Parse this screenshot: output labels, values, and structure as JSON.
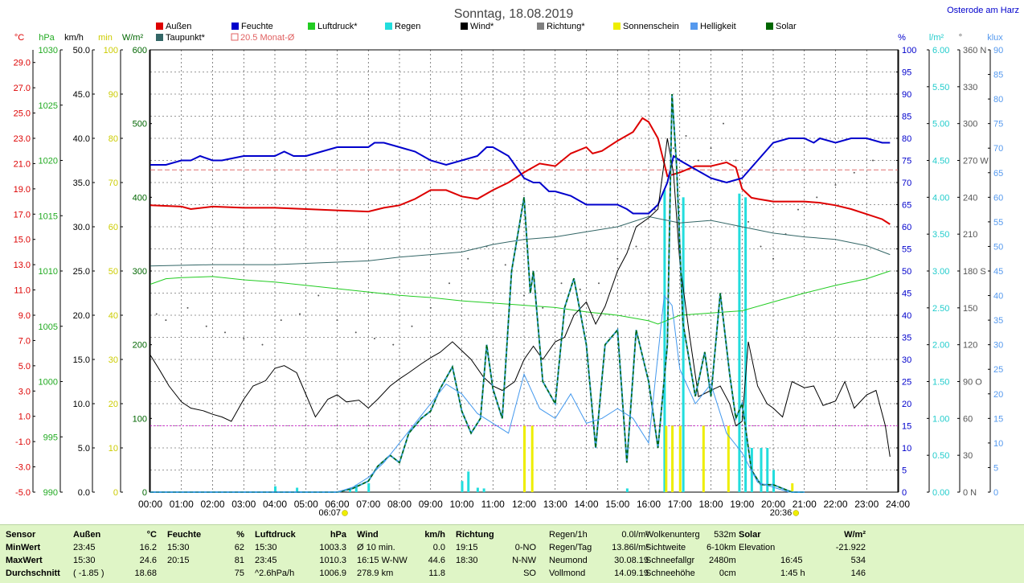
{
  "header": {
    "title": "Sonntag, 18.08.2019",
    "location": "Osterode am Harz"
  },
  "legend": [
    {
      "label": "Außen",
      "color": "#dd0000"
    },
    {
      "label": "Feuchte",
      "color": "#0000cc"
    },
    {
      "label": "Luftdruck*",
      "color": "#22cc22"
    },
    {
      "label": "Regen",
      "color": "#22dddd"
    },
    {
      "label": "Wind*",
      "color": "#000000"
    },
    {
      "label": "Richtung*",
      "color": "#808080"
    },
    {
      "label": "Sonnenschein",
      "color": "#eeee00"
    },
    {
      "label": "Helligkeit",
      "color": "#5599ee"
    },
    {
      "label": "Solar",
      "color": "#006600"
    },
    {
      "label": "Taupunkt*",
      "color": "#336666"
    },
    {
      "label": "20.5 Monat-Ø",
      "color": "#e06060"
    }
  ],
  "axes_units": {
    "temp": "°C",
    "hpa": "hPa",
    "kmh": "km/h",
    "min": "min",
    "wm2": "W/m²",
    "pct": "%",
    "lm2": "l/m²",
    "deg": "°",
    "klux": "klux"
  },
  "chart_data": {
    "type": "line",
    "x_labels": [
      "00:00",
      "01:00",
      "02:00",
      "03:00",
      "04:00",
      "05:00",
      "06:00",
      "07:00",
      "08:00",
      "09:00",
      "10:00",
      "11:00",
      "12:00",
      "13:00",
      "14:00",
      "15:00",
      "16:00",
      "17:00",
      "18:00",
      "19:00",
      "20:00",
      "21:00",
      "22:00",
      "23:00",
      "24:00"
    ],
    "sunrise": "06:07",
    "sunset": "20:36",
    "month_avg_temp": 20.5,
    "axes": {
      "temp": {
        "ticks": [
          "29.0",
          "27.0",
          "25.0",
          "23.0",
          "21.0",
          "19.0",
          "17.0",
          "15.0",
          "13.0",
          "11.0",
          "9.0",
          "7.0",
          "5.0",
          "3.0",
          "1.0",
          "-1.0",
          "-3.0",
          "-5.0"
        ],
        "range": [
          -5,
          30
        ]
      },
      "hpa": {
        "ticks": [
          "1030",
          "1025",
          "1020",
          "1015",
          "1010",
          "1005",
          "1000",
          "995",
          "990"
        ],
        "range": [
          990,
          1030
        ]
      },
      "kmh": {
        "ticks": [
          "50.0",
          "45.0",
          "40.0",
          "35.0",
          "30.0",
          "25.0",
          "20.0",
          "15.0",
          "10.0",
          "5.0",
          "0.0"
        ],
        "range": [
          0,
          50
        ]
      },
      "min": {
        "ticks": [
          "100",
          "90",
          "80",
          "70",
          "60",
          "50",
          "40",
          "30",
          "20",
          "10",
          "0"
        ],
        "range": [
          0,
          100
        ]
      },
      "wm2": {
        "ticks": [
          "600",
          "500",
          "400",
          "300",
          "200",
          "100",
          "0"
        ],
        "range": [
          0,
          600
        ]
      },
      "pct": {
        "ticks": [
          "100",
          "95",
          "90",
          "85",
          "80",
          "75",
          "70",
          "65",
          "60",
          "55",
          "50",
          "45",
          "40",
          "35",
          "30",
          "25",
          "20",
          "15",
          "10",
          "5",
          "0"
        ],
        "range": [
          0,
          100
        ]
      },
      "lm2": {
        "ticks": [
          "6.00",
          "5.50",
          "5.00",
          "4.50",
          "4.00",
          "3.50",
          "3.00",
          "2.50",
          "2.00",
          "1.50",
          "1.00",
          "0.50",
          "0.00"
        ],
        "range": [
          0,
          6
        ]
      },
      "deg": {
        "ticks": [
          "360 N",
          "330",
          "300",
          "270 W",
          "240",
          "210",
          "180 S",
          "150",
          "120",
          "90 O",
          "60",
          "30",
          "0 N"
        ],
        "range": [
          0,
          360
        ]
      },
      "klux": {
        "ticks": [
          "90",
          "85",
          "80",
          "75",
          "70",
          "65",
          "60",
          "55",
          "50",
          "45",
          "40",
          "35",
          "30",
          "25",
          "20",
          "15",
          "10",
          "5",
          "0"
        ],
        "range": [
          0,
          90
        ]
      }
    },
    "series": [
      {
        "name": "Außen",
        "axis": "temp",
        "color": "#dd0000",
        "width": 2,
        "x": [
          0,
          1,
          1.3,
          2,
          3,
          4,
          5,
          6,
          7,
          7.5,
          8,
          8.5,
          9,
          9.5,
          10,
          10.5,
          11,
          11.5,
          12,
          12.5,
          13,
          13.5,
          14,
          14.2,
          14.5,
          15,
          15.5,
          15.8,
          16,
          16.3,
          16.6,
          17,
          17.5,
          18,
          18.5,
          18.8,
          19,
          19.3,
          19.5,
          20,
          20.5,
          21,
          21.5,
          22,
          22.5,
          23,
          23.5,
          23.75
        ],
        "y": [
          17.7,
          17.6,
          17.4,
          17.6,
          17.5,
          17.5,
          17.4,
          17.3,
          17.2,
          17.5,
          17.7,
          18.2,
          18.9,
          18.9,
          18.4,
          18.2,
          18.9,
          19.5,
          20.3,
          21.0,
          20.8,
          21.8,
          22.3,
          21.8,
          22.0,
          22.8,
          23.5,
          24.6,
          24.3,
          23.0,
          20.0,
          20.3,
          20.8,
          20.8,
          21.1,
          20.7,
          19.0,
          18.3,
          18.2,
          18.0,
          18.0,
          18.0,
          17.9,
          17.7,
          17.4,
          17.0,
          16.6,
          16.2
        ]
      },
      {
        "name": "Feuchte",
        "axis": "pct",
        "color": "#0000cc",
        "width": 2,
        "x": [
          0,
          0.5,
          1,
          1.3,
          1.6,
          2,
          2.3,
          3,
          4,
          4.3,
          4.6,
          5,
          5.5,
          6,
          7,
          7.2,
          7.5,
          8,
          8.5,
          9,
          9.5,
          10,
          10.5,
          10.8,
          11,
          11.5,
          12,
          12.3,
          12.5,
          12.8,
          13,
          13.5,
          14,
          15,
          15.3,
          15.5,
          16,
          16.3,
          16.6,
          16.8,
          17,
          17.5,
          18,
          18.5,
          19,
          19.5,
          20,
          20.5,
          21,
          21.3,
          21.5,
          22,
          22.5,
          23,
          23.5,
          23.75
        ],
        "y": [
          74,
          74,
          75,
          75,
          76,
          75,
          75,
          76,
          76,
          77,
          76,
          76,
          77,
          78,
          78,
          79,
          79,
          78,
          77,
          75,
          74,
          75,
          76,
          78,
          78,
          76,
          71,
          70,
          70,
          68,
          68,
          67,
          65,
          65,
          64,
          63,
          63,
          65,
          70,
          76,
          75,
          73,
          71,
          70,
          71,
          75,
          79,
          80,
          80,
          79,
          80,
          79,
          80,
          80,
          79,
          79
        ]
      },
      {
        "name": "Luftdruck",
        "axis": "hpa",
        "color": "#22cc22",
        "width": 1,
        "x": [
          0,
          0.5,
          1,
          2,
          3,
          4,
          5,
          6,
          7,
          8,
          9,
          10,
          11,
          12,
          13,
          14,
          15,
          16,
          16.3,
          17,
          18,
          19,
          20,
          21,
          22,
          23,
          23.75
        ],
        "y": [
          1008.8,
          1009.3,
          1009.4,
          1009.5,
          1009.2,
          1009.0,
          1008.7,
          1008.4,
          1008.1,
          1007.8,
          1007.6,
          1007.3,
          1007.1,
          1006.9,
          1006.7,
          1006.3,
          1006.0,
          1005.5,
          1005.2,
          1006.0,
          1006.2,
          1006.4,
          1007.2,
          1008.0,
          1008.7,
          1009.3,
          1010.0
        ]
      },
      {
        "name": "Taupunkt",
        "axis": "temp",
        "color": "#336666",
        "width": 1,
        "x": [
          0,
          2,
          4,
          6,
          7,
          8,
          9,
          10,
          11,
          12,
          13,
          14,
          15,
          16,
          17,
          18,
          19,
          20,
          21,
          22,
          23,
          23.75
        ],
        "y": [
          12.9,
          13.0,
          13.0,
          13.2,
          13.3,
          13.6,
          13.8,
          14.0,
          14.6,
          15.0,
          15.2,
          15.6,
          16.0,
          16.8,
          16.3,
          16.5,
          16.0,
          15.5,
          15.2,
          15.0,
          14.5,
          13.8
        ]
      },
      {
        "name": "Wind",
        "axis": "kmh",
        "color": "#000000",
        "width": 1,
        "x": [
          0,
          0.3,
          0.6,
          1,
          1.3,
          1.7,
          2,
          2.3,
          2.6,
          3,
          3.3,
          3.7,
          4,
          4.3,
          4.7,
          5,
          5.3,
          5.7,
          6,
          6.3,
          6.7,
          7,
          7.3,
          7.7,
          8,
          8.3,
          8.7,
          9,
          9.3,
          9.7,
          10,
          10.3,
          10.7,
          11,
          11.3,
          11.7,
          12,
          12.3,
          12.6,
          13,
          13.3,
          13.6,
          14,
          14.3,
          14.6,
          15,
          15.3,
          15.6,
          16,
          16.3,
          16.6,
          16.8,
          17,
          17.3,
          17.6,
          18,
          18.3,
          18.6,
          18.8,
          19,
          19.2,
          19.5,
          19.8,
          20,
          20.3,
          20.6,
          21,
          21.3,
          21.6,
          22,
          22.3,
          22.6,
          23,
          23.3,
          23.6,
          23.75
        ],
        "y": [
          15.5,
          13.8,
          12.0,
          10.2,
          9.5,
          9.2,
          8.8,
          8.5,
          8.0,
          10.5,
          12.0,
          12.6,
          14.0,
          14.3,
          13.5,
          11.0,
          8.5,
          10.5,
          11.0,
          10.2,
          10.4,
          9.5,
          10.5,
          12.0,
          12.8,
          13.5,
          14.5,
          15.2,
          15.8,
          17.0,
          16.0,
          15.0,
          13.0,
          12.0,
          11.5,
          12.5,
          15.0,
          16.5,
          15.0,
          17.0,
          17.5,
          20.0,
          21.5,
          19.0,
          21.0,
          25.0,
          27.0,
          30.0,
          31.0,
          32.0,
          40.0,
          36.0,
          26.0,
          18.0,
          10.8,
          11.5,
          12.0,
          10.0,
          7.5,
          8.0,
          17.0,
          12.0,
          10.0,
          9.5,
          8.5,
          12.5,
          11.8,
          12.0,
          9.8,
          10.3,
          12.5,
          9.5,
          11.0,
          11.5,
          7.5,
          4.0
        ]
      },
      {
        "name": "Solar",
        "axis": "wm2",
        "color": "#006600",
        "width": 2,
        "dash": "4 3",
        "x": [
          0,
          6,
          6.2,
          6.5,
          7,
          7.3,
          7.7,
          8,
          8.3,
          8.7,
          9,
          9.3,
          9.7,
          10,
          10.3,
          10.6,
          10.8,
          11,
          11.3,
          11.6,
          12,
          12.2,
          12.3,
          12.6,
          13,
          13.3,
          13.6,
          14,
          14.3,
          14.6,
          15,
          15.3,
          15.6,
          16,
          16.3,
          16.6,
          16.75,
          16.9,
          17.1,
          17.5,
          17.8,
          18,
          18.3,
          18.6,
          18.8,
          19,
          19.3,
          19.6,
          20,
          20.3,
          20.6,
          21
        ],
        "y": [
          0,
          0,
          2,
          5,
          15,
          35,
          50,
          40,
          80,
          100,
          110,
          140,
          170,
          110,
          80,
          100,
          200,
          140,
          100,
          300,
          400,
          270,
          300,
          150,
          120,
          250,
          290,
          200,
          60,
          200,
          220,
          40,
          220,
          150,
          60,
          200,
          540,
          440,
          230,
          130,
          190,
          130,
          270,
          160,
          100,
          120,
          30,
          10,
          10,
          5,
          0,
          0
        ],
        "color2": "#3399cc"
      },
      {
        "name": "Helligkeit",
        "axis": "klux",
        "color": "#4499ee",
        "width": 1,
        "x": [
          0,
          6,
          6.5,
          7,
          7.5,
          8,
          8.5,
          9,
          9.5,
          10,
          10.5,
          11,
          11.5,
          12,
          12.5,
          13,
          13.5,
          14,
          14.5,
          15,
          15.5,
          16,
          16.5,
          16.75,
          17,
          17.5,
          18,
          18.5,
          19,
          19.5,
          20,
          20.5,
          21
        ],
        "y": [
          0,
          0,
          1,
          3,
          6,
          10,
          14,
          18,
          22,
          20,
          16,
          14,
          12,
          24,
          17,
          15,
          20,
          14,
          15,
          17,
          15,
          10,
          40,
          38,
          25,
          18,
          22,
          12,
          8,
          2,
          1,
          0,
          0
        ]
      }
    ],
    "rain_bars": {
      "axis": "lm2",
      "color": "#22dddd",
      "x": [
        4.0,
        4.7,
        6.4,
        6.6,
        7.0,
        10.0,
        10.2,
        10.5,
        10.7,
        15.3,
        16.5,
        17.1,
        18.9,
        19.1,
        19.3,
        19.6,
        19.8,
        20.0
      ],
      "values": [
        0.08,
        0.06,
        0.05,
        0.1,
        0.12,
        0.15,
        0.28,
        0.06,
        0.05,
        0.05,
        4.1,
        4.0,
        4.05,
        4.0,
        0.6,
        0.6,
        0.6,
        0.3
      ]
    },
    "sun_bars": {
      "axis": "min",
      "color": "#eeee00",
      "x": [
        12.0,
        12.25,
        16.55,
        16.75,
        17.0,
        17.75,
        18.55,
        20.6
      ],
      "values": [
        15,
        15,
        15,
        15,
        15,
        15,
        15,
        2
      ]
    },
    "direction_points": {
      "axis": "deg",
      "color": "#555555",
      "x": [
        0.2,
        0.5,
        1.2,
        1.8,
        2.4,
        3.0,
        3.6,
        4.2,
        4.8,
        5.4,
        6.0,
        6.6,
        7.2,
        7.8,
        8.4,
        9.0,
        9.6,
        10.2,
        10.8,
        11.4,
        12.0,
        12.6,
        13.2,
        13.8,
        14.4,
        15.0,
        15.6,
        16.2,
        16.8,
        17.2,
        17.6,
        18.0,
        18.4,
        18.8,
        19.2,
        19.6,
        20.0,
        20.4,
        20.8,
        21.4,
        22.0,
        22.6,
        23.2
      ],
      "y": [
        145,
        140,
        150,
        135,
        130,
        125,
        120,
        140,
        145,
        160,
        140,
        130,
        125,
        120,
        135,
        150,
        170,
        190,
        200,
        185,
        160,
        150,
        170,
        165,
        170,
        190,
        200,
        230,
        280,
        290,
        270,
        280,
        300,
        270,
        220,
        200,
        190,
        210,
        230,
        240,
        250,
        260,
        270
      ]
    }
  },
  "footer": {
    "headers": [
      "Sensor",
      "Außen",
      "°C",
      "Feuchte",
      "%",
      "Luftdruck",
      "hPa",
      "Wind",
      "km/h",
      "Richtung"
    ],
    "rows": [
      {
        "label": "MinWert",
        "aussen_time": "23:45",
        "aussen_val": "16.2",
        "feuchte_time": "15:30",
        "feuchte_val": "62",
        "druck_time": "15:30",
        "druck_val": "1003.3",
        "wind_time": "Ø 10 min.",
        "wind_val": "0.0",
        "richt_time": "19:15",
        "richt_val": "0-NO"
      },
      {
        "label": "MaxWert",
        "aussen_time": "15:30",
        "aussen_val": "24.6",
        "feuchte_time": "20:15",
        "feuchte_val": "81",
        "druck_time": "23:45",
        "druck_val": "1010.3",
        "wind_time": "16:15  W-NW",
        "wind_val": "44.6",
        "richt_time": "18:30",
        "richt_val": "N-NW"
      },
      {
        "label": "Durchschnitt",
        "aussen_time": "( -1.85 )",
        "aussen_val": "18.68",
        "feuchte_time": "",
        "feuchte_val": "75",
        "druck_time": "^2.6hPa/h",
        "druck_val": "1006.9",
        "wind_time": "278.9 km",
        "wind_val": "11.8",
        "richt_time": "",
        "richt_val": "SO"
      }
    ],
    "info1": [
      {
        "label": "Regen/1h",
        "value": "0.0l/m²"
      },
      {
        "label": "Regen/Tag",
        "value": "13.86l/m²"
      },
      {
        "label": "Neumond",
        "value": "30.08.19"
      },
      {
        "label": "Vollmond",
        "value": "14.09.19"
      }
    ],
    "info2": [
      {
        "label": "Wolkenunterg",
        "value": "532m"
      },
      {
        "label": "Sichtweite",
        "value": "6-10km"
      },
      {
        "label": "Schneefallgr",
        "value": "2480m"
      },
      {
        "label": "Schneehöhe",
        "value": "0cm"
      }
    ],
    "solar_header": {
      "label": "Solar",
      "unit": "W/m²"
    },
    "solar": [
      {
        "label": "Elevation",
        "time": "",
        "value": "-21.922"
      },
      {
        "label": "",
        "time": "16:45",
        "value": "534"
      },
      {
        "label": "",
        "time": "1:45 h",
        "value": "146"
      }
    ]
  }
}
